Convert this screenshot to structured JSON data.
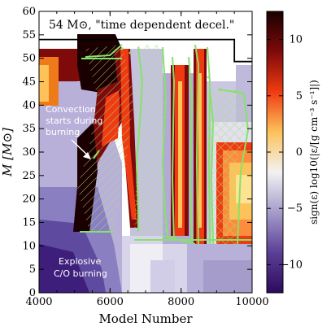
{
  "chart_data": {
    "type": "heatmap",
    "title": "54 M⊙, \"time dependent decel.\"",
    "xlabel": "Model Number",
    "ylabel": "M [M⊙]",
    "xlim": [
      4000,
      10000
    ],
    "ylim": [
      0,
      60
    ],
    "x_ticks": [
      "4000",
      "6000",
      "8000",
      "10000"
    ],
    "x_tick_values": [
      4000,
      6000,
      8000,
      10000
    ],
    "y_ticks": [
      "0",
      "5",
      "10",
      "15",
      "20",
      "25",
      "30",
      "35",
      "40",
      "45",
      "50",
      "55",
      "60"
    ],
    "y_tick_values": [
      0,
      5,
      10,
      15,
      20,
      25,
      30,
      35,
      40,
      45,
      50,
      55,
      60
    ],
    "colorbar": {
      "label": "sign(ε) log10(|ε/[g cm⁻³ s⁻¹]|)",
      "range": [
        -12.5,
        12.5
      ],
      "ticks": [
        "−10",
        "−5",
        "0",
        "5",
        "10"
      ],
      "tick_values": [
        -10,
        -5,
        0,
        5,
        10
      ],
      "colormap": [
        "#2c0a5e",
        "#5b3f96",
        "#a59ccb",
        "#f2f2f2",
        "#fdc25a",
        "#ef3b12",
        "#7e0a0a",
        "#1a0000"
      ]
    },
    "stellar_mass_boundary": [
      {
        "x": 4000,
        "y": 54.0
      },
      {
        "x": 9500,
        "y": 54.0
      },
      {
        "x": 9500,
        "y": 49.3
      },
      {
        "x": 10000,
        "y": 49.3
      }
    ],
    "annotations": [
      {
        "text": "Convection starts during burning",
        "lines": [
          "Convection",
          "starts during",
          "burning"
        ],
        "arrow_to": {
          "x": 5280,
          "y": 28
        }
      },
      {
        "text": "Explosive C/O burning",
        "lines": [
          "Explosive",
          "C/O burning"
        ]
      }
    ]
  }
}
